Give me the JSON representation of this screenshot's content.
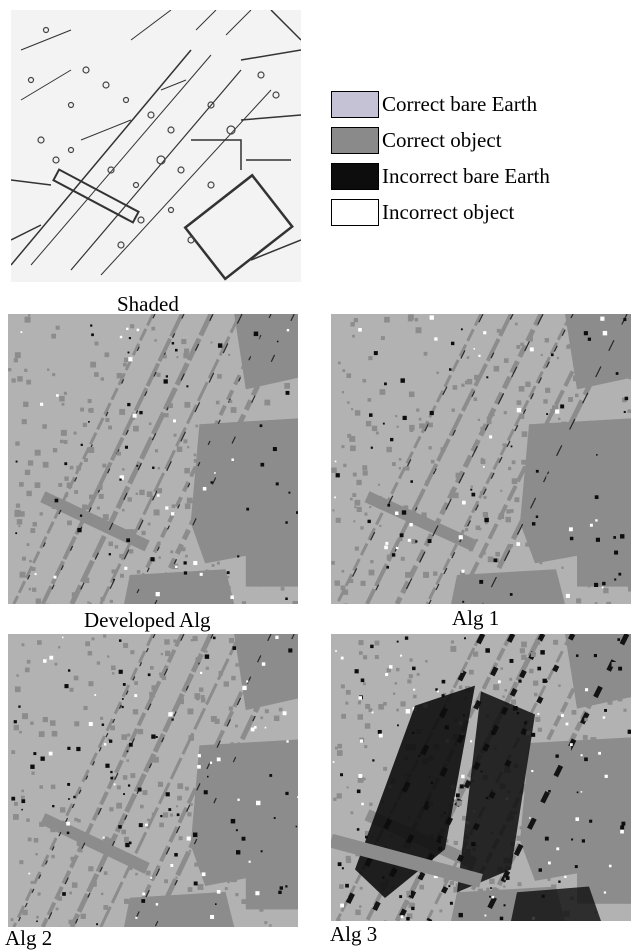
{
  "legend": {
    "items": [
      {
        "label": "Correct bare Earth",
        "color": "#c4c2d4"
      },
      {
        "label": "Correct object",
        "color": "#8a8a8a"
      },
      {
        "label": "Incorrect bare Earth",
        "color": "#0d0d0d"
      },
      {
        "label": "Incorrect object",
        "color": "#ffffff"
      }
    ]
  },
  "panels": {
    "shaded": {
      "caption": "Shaded"
    },
    "developed": {
      "caption": "Developed Alg"
    },
    "alg1": {
      "caption": "Alg 1"
    },
    "alg2": {
      "caption": "Alg 2"
    },
    "alg3": {
      "caption": "Alg 3"
    }
  },
  "colors": {
    "map_background": "#b2b2b2",
    "object": "#8c8c8c",
    "incorrect_bare_earth": "#0d0d0d",
    "incorrect_object": "#ffffff",
    "shaded_background": "#f2f2f2",
    "shaded_ink": "#333333"
  }
}
